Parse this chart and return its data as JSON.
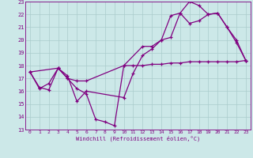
{
  "xlabel": "Windchill (Refroidissement éolien,°C)",
  "bg_color": "#cce8e8",
  "grid_color": "#aacccc",
  "line_color": "#800080",
  "xlim": [
    -0.5,
    23.5
  ],
  "ylim": [
    13,
    23
  ],
  "xticks": [
    0,
    1,
    2,
    3,
    4,
    5,
    6,
    7,
    8,
    9,
    10,
    11,
    12,
    13,
    14,
    15,
    16,
    17,
    18,
    19,
    20,
    21,
    22,
    23
  ],
  "yticks": [
    13,
    14,
    15,
    16,
    17,
    18,
    19,
    20,
    21,
    22,
    23
  ],
  "curve1_x": [
    0,
    1,
    2,
    3,
    4,
    5,
    6,
    10,
    11,
    12,
    13,
    14,
    15,
    16,
    17,
    18,
    19,
    20,
    21,
    22,
    23
  ],
  "curve1_y": [
    17.5,
    16.2,
    16.6,
    17.8,
    17.2,
    15.2,
    16.0,
    15.5,
    17.4,
    18.8,
    19.3,
    20.0,
    21.9,
    22.1,
    21.3,
    21.5,
    22.0,
    22.1,
    21.0,
    20.0,
    18.4
  ],
  "curve2_x": [
    0,
    1,
    2,
    3,
    4,
    5,
    6,
    7,
    8,
    9,
    10,
    11,
    12,
    13,
    14,
    15,
    16,
    17,
    18,
    19,
    20,
    21,
    22,
    23
  ],
  "curve2_y": [
    17.5,
    16.3,
    16.1,
    17.8,
    17.0,
    16.2,
    15.8,
    13.8,
    13.6,
    13.3,
    18.0,
    18.0,
    18.0,
    18.1,
    18.1,
    18.2,
    18.2,
    18.3,
    18.3,
    18.3,
    18.3,
    18.3,
    18.3,
    18.4
  ],
  "curve3_x": [
    0,
    3,
    4,
    5,
    6,
    10,
    12,
    13,
    14,
    15,
    16,
    17,
    18,
    19,
    20,
    21,
    22,
    23
  ],
  "curve3_y": [
    17.5,
    17.8,
    17.0,
    16.8,
    16.8,
    18.0,
    19.5,
    19.5,
    20.0,
    20.2,
    22.1,
    23.0,
    22.7,
    22.0,
    22.1,
    21.0,
    19.8,
    18.4
  ]
}
